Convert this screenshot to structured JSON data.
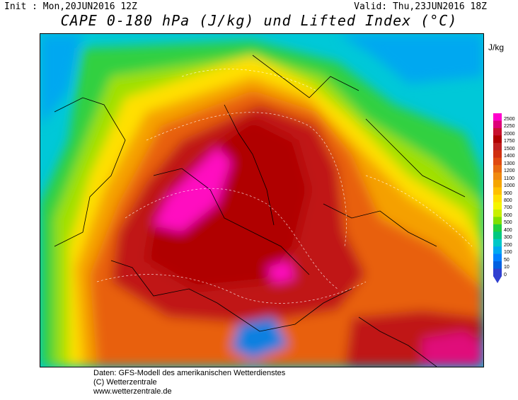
{
  "header": {
    "init_text": "Init : Mon,20JUN2016 12Z",
    "valid_text": "Valid: Thu,23JUN2016 18Z",
    "title": "CAPE 0-180 hPa (J/kg) und Lifted Index (°C)"
  },
  "legend": {
    "unit": "J/kg",
    "labels": [
      "2500",
      "2250",
      "2000",
      "1750",
      "1500",
      "1400",
      "1300",
      "1200",
      "1100",
      "1000",
      "900",
      "800",
      "700",
      "600",
      "500",
      "400",
      "300",
      "200",
      "100",
      "50",
      "10",
      "0"
    ],
    "colors": [
      "#ff00cc",
      "#dd0077",
      "#c8102e",
      "#b00000",
      "#c02020",
      "#d03010",
      "#e04a10",
      "#e86a10",
      "#f08a10",
      "#f5a500",
      "#ffc000",
      "#ffdf00",
      "#f5f500",
      "#c8f000",
      "#80e000",
      "#20d040",
      "#00c880",
      "#00c8c8",
      "#00a8f0",
      "#0080ff",
      "#0060e0",
      "#3040d0"
    ]
  },
  "credits": {
    "line1": "Daten: GFS-Modell des amerikanischen Wetterdienstes",
    "line2": "(C) Wetterzentrale",
    "line3": "www.wetterzentrale.de"
  }
}
